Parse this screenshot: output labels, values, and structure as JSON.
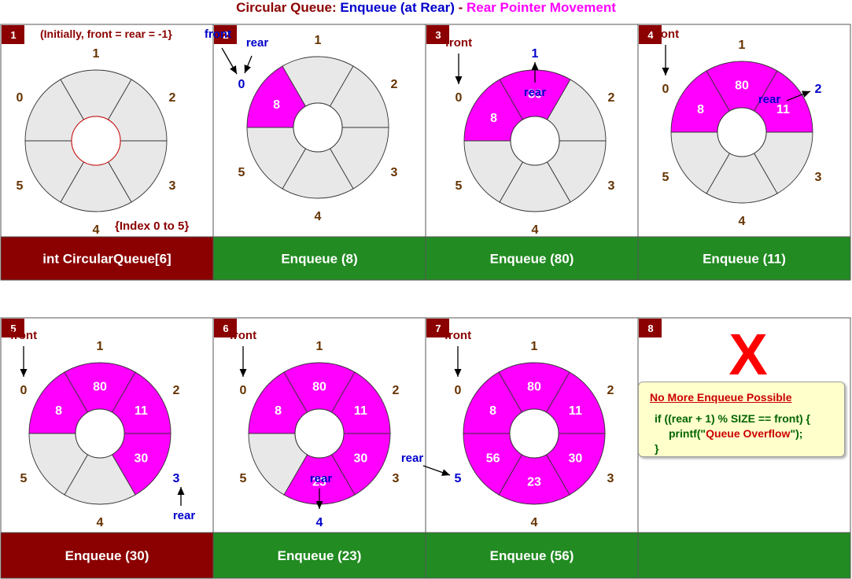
{
  "title": {
    "part1": "Circular Queue: ",
    "part2": "Enqueue (at Rear)",
    "part3": " - ",
    "part4": "Rear Pointer Movement"
  },
  "colors": {
    "filled": "#ff00ff",
    "empty": "#e8e8e8",
    "footer_red": "#8b0000",
    "footer_green": "#228b22",
    "index_label": "#663300",
    "pointer_blue": "#0000cc",
    "text_red": "#8b0000"
  },
  "panels": [
    {
      "number": "1",
      "note": "(Initially, front = rear = -1}",
      "note2": "{Index 0 to 5}",
      "values": [
        "",
        "",
        "",
        "",
        "",
        ""
      ],
      "highlight": [],
      "pointers": [],
      "footer": "int CircularQueue[6]",
      "footer_color": "red"
    },
    {
      "number": "2",
      "values": [
        "8",
        "",
        "",
        "",
        "",
        ""
      ],
      "highlight": [
        0
      ],
      "pointers": [
        {
          "label": "front",
          "index": 0
        },
        {
          "label": "rear",
          "index": 0
        }
      ],
      "footer": "Enqueue (8)",
      "footer_color": "green"
    },
    {
      "number": "3",
      "values": [
        "8",
        "80",
        "",
        "",
        "",
        ""
      ],
      "highlight": [
        1
      ],
      "pointers": [
        {
          "label": "front",
          "index": 0
        },
        {
          "label": "rear",
          "index": 1
        }
      ],
      "footer": "Enqueue (80)",
      "footer_color": "green"
    },
    {
      "number": "4",
      "values": [
        "8",
        "80",
        "11",
        "",
        "",
        ""
      ],
      "highlight": [
        2
      ],
      "pointers": [
        {
          "label": "front",
          "index": 0
        },
        {
          "label": "rear",
          "index": 2
        }
      ],
      "footer": "Enqueue (11)",
      "footer_color": "green"
    },
    {
      "number": "5",
      "values": [
        "8",
        "80",
        "11",
        "30",
        "",
        ""
      ],
      "highlight": [
        3
      ],
      "pointers": [
        {
          "label": "front",
          "index": 0
        },
        {
          "label": "rear",
          "index": 3
        }
      ],
      "footer": "Enqueue (30)",
      "footer_color": "red"
    },
    {
      "number": "6",
      "values": [
        "8",
        "80",
        "11",
        "30",
        "23",
        ""
      ],
      "highlight": [
        4
      ],
      "pointers": [
        {
          "label": "front",
          "index": 0
        },
        {
          "label": "rear",
          "index": 4
        }
      ],
      "footer": "Enqueue (23)",
      "footer_color": "green"
    },
    {
      "number": "7",
      "values": [
        "8",
        "80",
        "11",
        "30",
        "23",
        "56"
      ],
      "highlight": [
        5
      ],
      "pointers": [
        {
          "label": "front",
          "index": 0
        },
        {
          "label": "rear",
          "index": 5
        }
      ],
      "footer": "Enqueue (56)",
      "footer_color": "green"
    },
    {
      "number": "8",
      "mark": "X",
      "footer": "",
      "footer_color": "green"
    }
  ],
  "overflow": {
    "heading": "No More Enqueue Possible",
    "line1": "if ((rear + 1) % SIZE == front) {",
    "line2a": "printf(\"",
    "line2b": "Queue Overflow",
    "line2c": "\");",
    "line3": "}"
  }
}
